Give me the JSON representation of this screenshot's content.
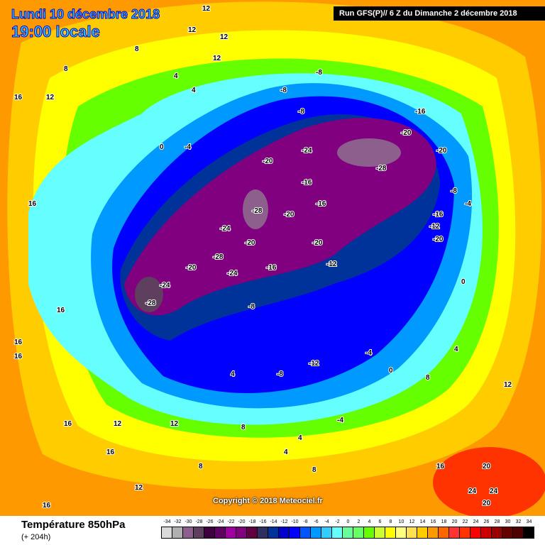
{
  "header": {
    "date": "Lundi 10 décembre 2018",
    "time": "19:00 locale",
    "run": "Run GFS(P)// 6 Z du Dimanche 2 décembre 2018"
  },
  "copyright": "Copyright © 2018 Meteociel.fr",
  "legend": {
    "title": "Température 850hPa",
    "subtitle": "(+ 204h)",
    "labels": [
      "-34",
      "-32",
      "-30",
      "-28",
      "-26",
      "-24",
      "-22",
      "-20",
      "-18",
      "-16",
      "-14",
      "-12",
      "-10",
      "-8",
      "-6",
      "-4",
      "-2",
      "0",
      "2",
      "4",
      "6",
      "8",
      "10",
      "12",
      "14",
      "16",
      "18",
      "20",
      "22",
      "24",
      "26",
      "28",
      "30",
      "32",
      "34"
    ],
    "colors": [
      "#d9d9d9",
      "#b0b0b0",
      "#8c5f8c",
      "#5f3f5f",
      "#3f003f",
      "#600060",
      "#a000a0",
      "#800080",
      "#600040",
      "#303060",
      "#003399",
      "#0000cc",
      "#0000ff",
      "#0055ff",
      "#0099ff",
      "#33ccff",
      "#66ffff",
      "#66ff99",
      "#66ff66",
      "#66ff00",
      "#ccff33",
      "#ffff00",
      "#ffff80",
      "#ffe050",
      "#ffcc00",
      "#ff9900",
      "#ff6600",
      "#ff3333",
      "#ff3300",
      "#ff0000",
      "#cc0000",
      "#990000",
      "#660000",
      "#500000",
      "#000000"
    ]
  },
  "contour_labels": [
    "12",
    "12",
    "12",
    "12",
    "16",
    "16",
    "16",
    "12",
    "8",
    "8",
    "4",
    "4",
    "0",
    "-4",
    "-8",
    "-8",
    "-8",
    "-16",
    "-20",
    "-20",
    "-24",
    "-28",
    "-28",
    "-20",
    "-24",
    "-20",
    "-16",
    "-16",
    "-20",
    "-20",
    "-24",
    "-28",
    "-24",
    "-28",
    "-20",
    "-16",
    "-12",
    "-8",
    "-4",
    "-12",
    "-8",
    "-16",
    "-12",
    "-20",
    "-8",
    "-4",
    "0",
    "4",
    "8",
    "12",
    "16",
    "16",
    "20",
    "24",
    "24",
    "20",
    "16",
    "12",
    "8",
    "4",
    "0",
    "-4",
    "16",
    "16",
    "12",
    "8",
    "4",
    "4",
    "8",
    "12",
    "16"
  ]
}
